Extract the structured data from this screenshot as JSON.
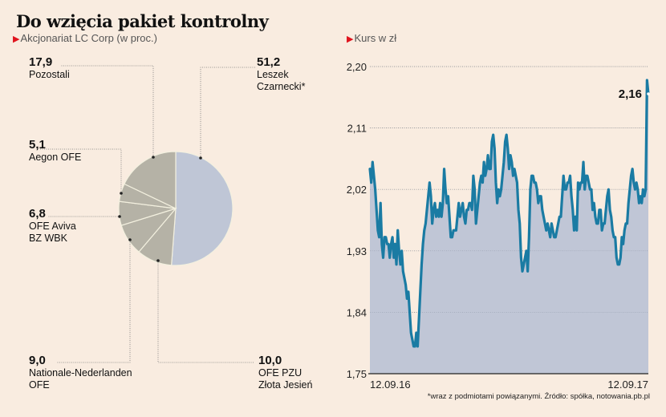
{
  "title": "Do wzięcia pakiet kontrolny",
  "left_subtitle": "Akcjonariat LC Corp (w proc.)",
  "right_subtitle": "Kurs w zł",
  "footnote": "*wraz z podmiotami powiązanymi. Źródło: spółka, notowania.pb.pl",
  "colors": {
    "background": "#f9ece0",
    "pie_main": "#bfc6d6",
    "pie_other": "#b5b2a6",
    "line": "#1a7ba3",
    "area": "#c0c6d6",
    "accent": "#e0141e"
  },
  "chart_data": [
    {
      "type": "pie",
      "title": "Akcjonariat LC Corp (w proc.)",
      "slices": [
        {
          "label": "Leszek Czarnecki*",
          "value": 51.2,
          "value_text": "51,2",
          "name_lines": [
            "Leszek",
            "Czarnecki*"
          ]
        },
        {
          "label": "OFE PZU Złota Jesień",
          "value": 10.0,
          "value_text": "10,0",
          "name_lines": [
            "OFE PZU",
            "Złota Jesień"
          ]
        },
        {
          "label": "Nationale-Nederlanden OFE",
          "value": 9.0,
          "value_text": "9,0",
          "name_lines": [
            "Nationale-Nederlanden",
            "OFE"
          ]
        },
        {
          "label": "OFE Aviva BZ WBK",
          "value": 6.8,
          "value_text": "6,8",
          "name_lines": [
            "OFE Aviva",
            "BZ WBK"
          ]
        },
        {
          "label": "Aegon OFE",
          "value": 5.1,
          "value_text": "5,1",
          "name_lines": [
            "Aegon OFE"
          ]
        },
        {
          "label": "Pozostali",
          "value": 17.9,
          "value_text": "17,9",
          "name_lines": [
            "Pozostali"
          ]
        }
      ]
    },
    {
      "type": "area",
      "title": "Kurs w zł",
      "ylim": [
        1.75,
        2.2
      ],
      "yticks": [
        1.75,
        1.84,
        1.93,
        2.02,
        2.11,
        2.2
      ],
      "ytick_labels": [
        "1,75",
        "1,84",
        "1,93",
        "2,02",
        "2,11",
        "2,20"
      ],
      "xtick_labels": [
        "12.09.16",
        "12.09.17"
      ],
      "grid": true,
      "last_value": 2.16,
      "last_value_text": "2,16",
      "values": [
        2.05,
        2.03,
        2.06,
        2.04,
        2.02,
        1.99,
        1.96,
        1.95,
        2.0,
        1.94,
        1.92,
        1.95,
        1.95,
        1.94,
        1.94,
        1.92,
        1.94,
        1.95,
        1.92,
        1.94,
        1.91,
        1.96,
        1.93,
        1.91,
        1.93,
        1.9,
        1.89,
        1.88,
        1.86,
        1.87,
        1.84,
        1.81,
        1.8,
        1.79,
        1.79,
        1.81,
        1.79,
        1.83,
        1.87,
        1.91,
        1.94,
        1.96,
        1.97,
        1.99,
        2.01,
        2.03,
        2.01,
        1.97,
        1.99,
        2.0,
        1.98,
        1.99,
        1.98,
        2.0,
        1.98,
        2.0,
        2.05,
        2.02,
        2.0,
        2.01,
        1.98,
        1.95,
        1.95,
        1.96,
        1.96,
        1.96,
        1.98,
        2.0,
        1.98,
        1.99,
        2.0,
        1.98,
        1.97,
        1.99,
        1.99,
        2.0,
        2.0,
        1.99,
        2.04,
        2.02,
        1.97,
        1.99,
        2.01,
        2.03,
        2.04,
        2.03,
        2.06,
        2.04,
        2.05,
        2.07,
        2.05,
        2.05,
        2.09,
        2.1,
        2.08,
        2.03,
        2.0,
        2.02,
        2.01,
        2.02,
        2.04,
        2.06,
        2.09,
        2.1,
        2.08,
        2.05,
        2.07,
        2.06,
        2.04,
        2.05,
        2.04,
        2.03,
        1.99,
        1.97,
        1.92,
        1.9,
        1.91,
        1.92,
        1.93,
        1.9,
        1.95,
        2.02,
        2.04,
        2.04,
        2.03,
        2.03,
        2.02,
        2.0,
        2.01,
        2.01,
        1.99,
        1.98,
        1.97,
        1.96,
        1.97,
        1.96,
        1.95,
        1.97,
        1.96,
        1.95,
        1.95,
        1.96,
        1.97,
        1.98,
        1.98,
        2.01,
        2.04,
        2.02,
        2.02,
        2.03,
        2.03,
        2.04,
        2.01,
        1.99,
        1.96,
        1.98,
        1.96,
        2.03,
        2.02,
        2.03,
        2.03,
        2.06,
        2.02,
        2.04,
        2.04,
        2.03,
        2.02,
        2.02,
        1.99,
        2.0,
        1.98,
        1.97,
        1.97,
        1.99,
        1.99,
        1.96,
        1.97,
        1.97,
        1.99,
        2.01,
        2.02,
        1.99,
        1.98,
        1.96,
        1.95,
        1.95,
        1.92,
        1.91,
        1.91,
        1.92,
        1.95,
        1.94,
        1.96,
        1.97,
        1.97,
        2.0,
        2.02,
        2.04,
        2.05,
        2.03,
        2.02,
        2.03,
        2.02,
        2.0,
        2.01,
        2.0,
        2.02,
        2.01,
        2.02,
        2.18,
        2.16
      ]
    }
  ]
}
